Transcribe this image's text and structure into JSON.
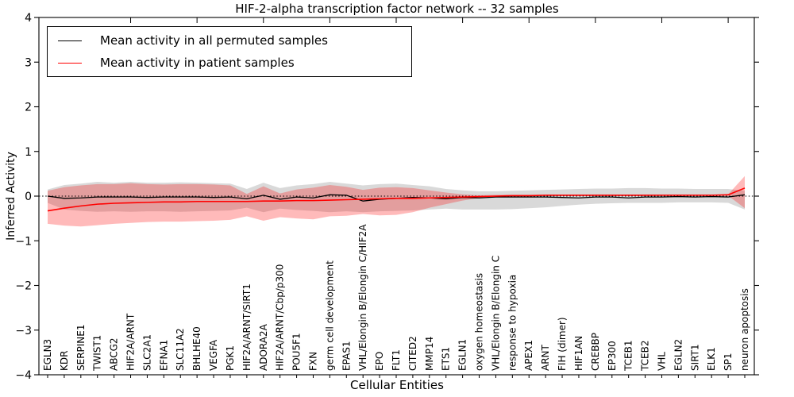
{
  "chart_data": {
    "type": "line",
    "title": "HIF-2-alpha transcription factor network -- 32 samples",
    "xlabel": "Cellular Entities",
    "ylabel": "Inferred Activity",
    "ylim": [
      -4,
      4
    ],
    "grid": false,
    "legend_position": "upper-left",
    "zero_line": {
      "value": 0,
      "style": "dotted",
      "color": "#000000"
    },
    "yticks": [
      {
        "label": "4",
        "value": 4
      },
      {
        "label": "3",
        "value": 3
      },
      {
        "label": "2",
        "value": 2
      },
      {
        "label": "1",
        "value": 1
      },
      {
        "label": "0",
        "value": 0
      },
      {
        "label": "−1",
        "value": -1
      },
      {
        "label": "−2",
        "value": -2
      },
      {
        "label": "−3",
        "value": -3
      },
      {
        "label": "−4",
        "value": -4
      }
    ],
    "categories": [
      "EGLN3",
      "KDR",
      "SERPINE1",
      "TWIST1",
      "ABCG2",
      "HIF2A/ARNT",
      "SLC2A1",
      "EFNA1",
      "SLC11A2",
      "BHLHE40",
      "VEGFA",
      "PGK1",
      "HIF2A/ARNT/SIRT1",
      "ADORA2A",
      "HIF2A/ARNT/Cbp/p300",
      "POU5F1",
      "FXN",
      "germ cell development",
      "EPAS1",
      "VHL/Elongin B/Elongin C/HIF2A",
      "EPO",
      "FLT1",
      "CITED2",
      "MMP14",
      "ETS1",
      "EGLN1",
      "oxygen homeostasis",
      "VHL/Elongin B/Elongin C",
      "response to hypoxia",
      "APEX1",
      "ARNT",
      "FIH (dimer)",
      "HIF1AN",
      "CREBBP",
      "EP300",
      "TCEB1",
      "TCEB2",
      "VHL",
      "EGLN2",
      "SIRT1",
      "ELK1",
      "SP1",
      "neuron apoptosis"
    ],
    "series": [
      {
        "name": "Mean activity in all permuted samples",
        "color": "#000000",
        "band_opacity": 0.15,
        "values": [
          0.0,
          -0.05,
          -0.04,
          -0.02,
          -0.02,
          -0.02,
          -0.03,
          -0.02,
          -0.02,
          -0.02,
          -0.03,
          -0.02,
          -0.06,
          0.02,
          -0.07,
          -0.02,
          -0.04,
          0.03,
          0.02,
          -0.11,
          -0.07,
          -0.05,
          -0.03,
          -0.04,
          -0.06,
          -0.03,
          -0.04,
          -0.02,
          -0.02,
          -0.02,
          -0.02,
          -0.03,
          -0.04,
          -0.02,
          -0.02,
          -0.04,
          -0.02,
          -0.02,
          -0.01,
          -0.02,
          -0.01,
          -0.02,
          0.03
        ],
        "band_upper": [
          0.15,
          0.25,
          0.28,
          0.32,
          0.3,
          0.32,
          0.3,
          0.3,
          0.31,
          0.3,
          0.29,
          0.28,
          0.16,
          0.3,
          0.18,
          0.24,
          0.27,
          0.32,
          0.28,
          0.24,
          0.27,
          0.28,
          0.25,
          0.22,
          0.16,
          0.13,
          0.11,
          0.11,
          0.12,
          0.13,
          0.14,
          0.15,
          0.16,
          0.17,
          0.17,
          0.18,
          0.18,
          0.17,
          0.17,
          0.16,
          0.16,
          0.16,
          0.12
        ],
        "band_lower": [
          -0.15,
          -0.3,
          -0.33,
          -0.35,
          -0.34,
          -0.35,
          -0.34,
          -0.34,
          -0.35,
          -0.34,
          -0.33,
          -0.32,
          -0.26,
          -0.36,
          -0.28,
          -0.31,
          -0.33,
          -0.36,
          -0.34,
          -0.36,
          -0.34,
          -0.33,
          -0.32,
          -0.3,
          -0.28,
          -0.3,
          -0.3,
          -0.3,
          -0.29,
          -0.27,
          -0.25,
          -0.22,
          -0.19,
          -0.17,
          -0.16,
          -0.15,
          -0.15,
          -0.15,
          -0.14,
          -0.14,
          -0.14,
          -0.15,
          -0.3
        ]
      },
      {
        "name": "Mean activity in patient samples",
        "color": "#ff0000",
        "band_opacity": 0.27,
        "values": [
          -0.33,
          -0.27,
          -0.22,
          -0.18,
          -0.16,
          -0.15,
          -0.14,
          -0.13,
          -0.13,
          -0.12,
          -0.12,
          -0.12,
          -0.12,
          -0.11,
          -0.11,
          -0.1,
          -0.1,
          -0.09,
          -0.08,
          -0.07,
          -0.06,
          -0.05,
          -0.05,
          -0.04,
          -0.03,
          -0.02,
          -0.01,
          0.0,
          0.01,
          0.01,
          0.02,
          0.02,
          0.02,
          0.02,
          0.02,
          0.02,
          0.02,
          0.02,
          0.02,
          0.02,
          0.02,
          0.03,
          0.18
        ],
        "band_upper": [
          0.12,
          0.2,
          0.24,
          0.27,
          0.27,
          0.29,
          0.27,
          0.26,
          0.27,
          0.27,
          0.26,
          0.24,
          0.05,
          0.22,
          0.06,
          0.15,
          0.19,
          0.25,
          0.21,
          0.14,
          0.19,
          0.2,
          0.18,
          0.13,
          0.08,
          0.04,
          0.02,
          0.03,
          0.03,
          0.03,
          0.03,
          0.03,
          0.03,
          0.03,
          0.03,
          0.03,
          0.03,
          0.03,
          0.03,
          0.03,
          0.03,
          0.04,
          0.45
        ],
        "band_lower": [
          -0.62,
          -0.66,
          -0.68,
          -0.65,
          -0.62,
          -0.6,
          -0.58,
          -0.57,
          -0.57,
          -0.56,
          -0.55,
          -0.53,
          -0.45,
          -0.55,
          -0.47,
          -0.5,
          -0.52,
          -0.45,
          -0.44,
          -0.4,
          -0.43,
          -0.42,
          -0.36,
          -0.26,
          -0.18,
          -0.1,
          -0.04,
          -0.02,
          -0.01,
          -0.01,
          0.0,
          0.0,
          0.0,
          0.0,
          0.0,
          0.0,
          0.0,
          0.01,
          0.01,
          0.01,
          0.01,
          0.01,
          -0.27
        ]
      }
    ]
  }
}
